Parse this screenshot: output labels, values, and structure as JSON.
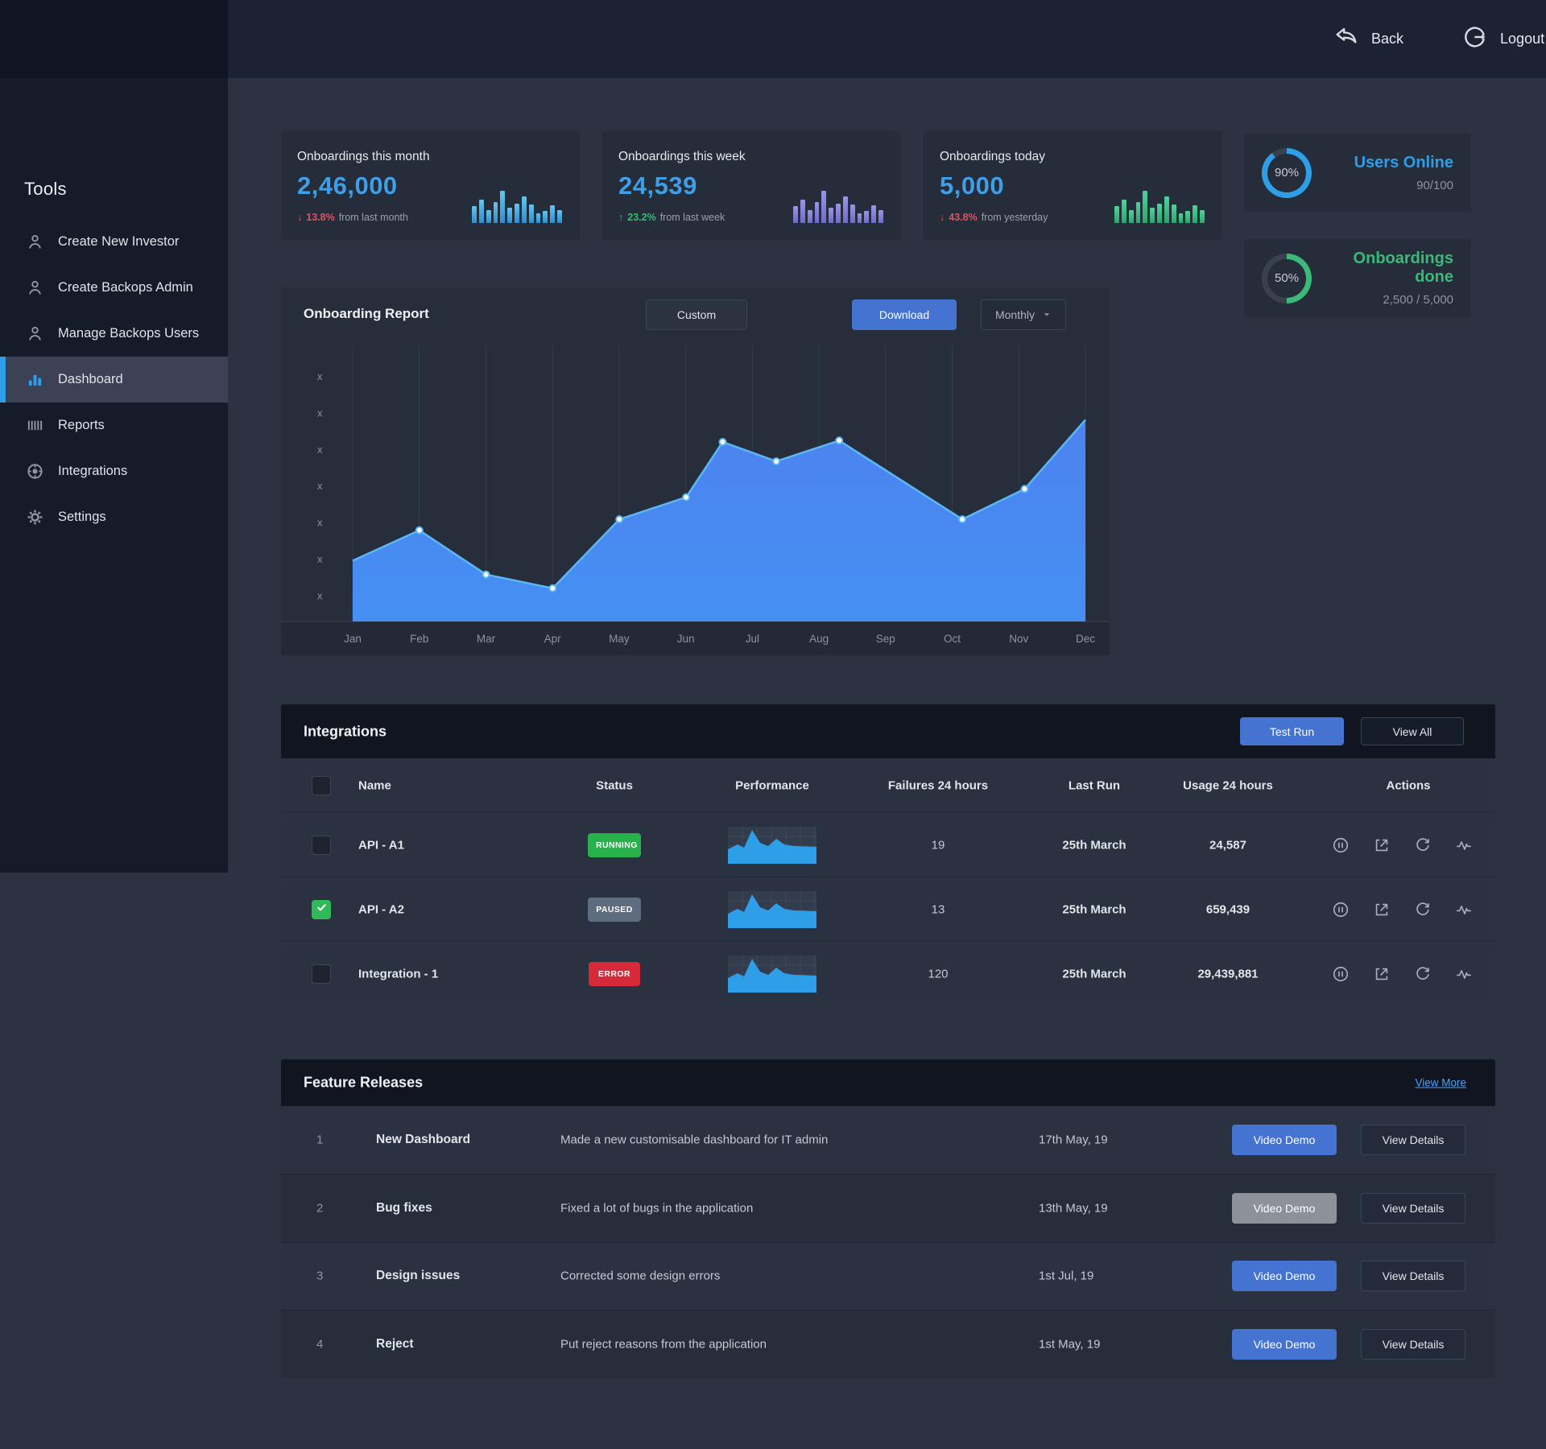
{
  "topbar": {
    "back": "Back",
    "logout": "Logout"
  },
  "sidebar": {
    "title": "Tools",
    "items": [
      {
        "label": "Create New Investor",
        "icon": "person",
        "active": false
      },
      {
        "label": "Create Backops Admin",
        "icon": "person",
        "active": false
      },
      {
        "label": "Manage Backops Users",
        "icon": "person",
        "active": false
      },
      {
        "label": "Dashboard",
        "icon": "bar-chart",
        "active": true
      },
      {
        "label": "Reports",
        "icon": "barcode",
        "active": false
      },
      {
        "label": "Integrations",
        "icon": "globe",
        "active": false
      },
      {
        "label": "Settings",
        "icon": "gear",
        "active": false
      }
    ]
  },
  "stat_cards": [
    {
      "title": "Onboardings this month",
      "value": "2,46,000",
      "direction": "down",
      "change": "13.8%",
      "suffix": "from last month",
      "theme": "blue"
    },
    {
      "title": "Onboardings this week",
      "value": "24,539",
      "direction": "up",
      "change": "23.2%",
      "suffix": "from last week",
      "theme": "purple"
    },
    {
      "title": "Onboardings today",
      "value": "5,000",
      "direction": "down",
      "change": "43.8%",
      "suffix": "from yesterday",
      "theme": "green"
    }
  ],
  "stat_bars": [
    50,
    68,
    38,
    62,
    95,
    45,
    58,
    78,
    55,
    28,
    36,
    52,
    38
  ],
  "gauges": [
    {
      "percent": 90,
      "percent_label": "90%",
      "label": "Users Online",
      "sub": "90/100",
      "color": "#2e9fe6"
    },
    {
      "percent": 50,
      "percent_label": "50%",
      "label": "Onboardings done",
      "sub": "2,500 / 5,000",
      "color": "#3cb878"
    }
  ],
  "report": {
    "title": "Onboarding Report",
    "custom": "Custom",
    "download": "Download",
    "period": "Monthly"
  },
  "chart_data": {
    "type": "area",
    "title": "Onboarding Report",
    "x_labels": [
      "Jan",
      "Feb",
      "Mar",
      "Apr",
      "May",
      "Jun",
      "Jul",
      "Aug",
      "Sep",
      "Oct",
      "Nov",
      "Dec"
    ],
    "y_tick_labels": [
      "x",
      "x",
      "x",
      "x",
      "x",
      "x",
      "x"
    ],
    "y_range": [
      0,
      100
    ],
    "grid": "vertical",
    "line_color": "#5bb7f3",
    "fill_top": "#4d82f0",
    "fill_bottom": "#4590f2",
    "points": [
      {
        "x": 0.0,
        "y": 22,
        "dot": false
      },
      {
        "x": 0.091,
        "y": 33,
        "dot": true
      },
      {
        "x": 0.182,
        "y": 17,
        "dot": true
      },
      {
        "x": 0.273,
        "y": 12,
        "dot": true
      },
      {
        "x": 0.364,
        "y": 37,
        "dot": true
      },
      {
        "x": 0.455,
        "y": 45,
        "dot": true
      },
      {
        "x": 0.505,
        "y": 65,
        "dot": true
      },
      {
        "x": 0.578,
        "y": 58,
        "dot": true
      },
      {
        "x": 0.664,
        "y": 65.5,
        "dot": true
      },
      {
        "x": 0.832,
        "y": 37,
        "dot": true
      },
      {
        "x": 0.917,
        "y": 48,
        "dot": true
      },
      {
        "x": 1.0,
        "y": 73,
        "dot": false
      }
    ]
  },
  "integrations": {
    "title": "Integrations",
    "test_run": "Test Run",
    "view_all": "View All",
    "columns": [
      "Name",
      "Status",
      "Performance",
      "Failures 24 hours",
      "Last Run",
      "Usage 24 hours",
      "Actions"
    ],
    "spark_points": [
      [
        0,
        28
      ],
      [
        12,
        22
      ],
      [
        20,
        26
      ],
      [
        30,
        4
      ],
      [
        40,
        20
      ],
      [
        50,
        24
      ],
      [
        60,
        15
      ],
      [
        70,
        22
      ],
      [
        82,
        24
      ],
      [
        110,
        25
      ]
    ],
    "spark_color": "#2f9ee8",
    "actions": [
      "pause",
      "export",
      "refresh",
      "activity"
    ],
    "rows": [
      {
        "checked": false,
        "name": "API - A1",
        "status": "RUNNING",
        "status_color": "#28b24b",
        "failures": "19",
        "last_run": "25th March",
        "usage": "24,587"
      },
      {
        "checked": true,
        "name": "API - A2",
        "status": "PAUSED",
        "status_color": "#5d6c7e",
        "failures": "13",
        "last_run": "25th March",
        "usage": "659,439"
      },
      {
        "checked": false,
        "name": "Integration - 1",
        "status": "ERROR",
        "status_color": "#d62939",
        "failures": "120",
        "last_run": "25th March",
        "usage": "29,439,881"
      }
    ]
  },
  "features": {
    "title": "Feature Releases",
    "view_more": "View More",
    "rows": [
      {
        "num": "1",
        "name": "New Dashboard",
        "desc": "Made a new customisable dashboard for IT admin",
        "date": "17th May, 19",
        "demo": "Video Demo",
        "details": "View Details",
        "demo_variant": "blue"
      },
      {
        "num": "2",
        "name": "Bug fixes",
        "desc": "Fixed a lot of bugs in the application",
        "date": "13th May, 19",
        "demo": "Video Demo",
        "details": "View Details",
        "demo_variant": "gray"
      },
      {
        "num": "3",
        "name": "Design issues",
        "desc": "Corrected some design errors",
        "date": "1st Jul, 19",
        "demo": "Video Demo",
        "details": "View Details",
        "demo_variant": "blue"
      },
      {
        "num": "4",
        "name": "Reject",
        "desc": "Put reject reasons from the application",
        "date": "1st May, 19",
        "demo": "Video Demo",
        "details": "View Details",
        "demo_variant": "blue"
      }
    ]
  }
}
